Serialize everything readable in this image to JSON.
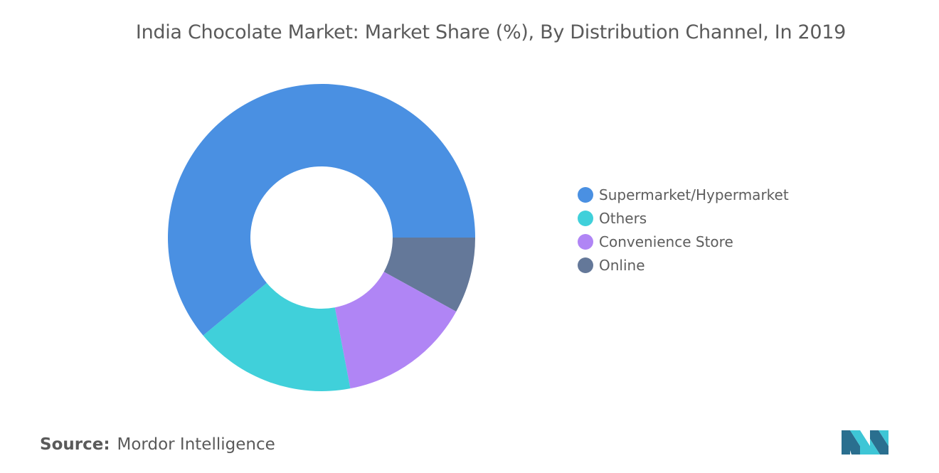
{
  "chart_data": {
    "type": "pie",
    "title": "India Chocolate Market: Market Share (%), By Distribution Channel, In 2019",
    "donut": true,
    "categories": [
      "Supermarket/Hypermarket",
      "Others",
      "Convenience Store",
      "Online"
    ],
    "values": [
      61,
      17,
      14,
      8
    ],
    "colors": [
      "#4a90e2",
      "#40d0da",
      "#b085f5",
      "#647899"
    ],
    "legend_position": "right"
  },
  "source": {
    "label": "Source:",
    "value": "Mordor Intelligence"
  },
  "logo": {
    "icon": "mordor-intelligence-logo-icon",
    "colors": [
      "#2a6f8f",
      "#3ec6d6"
    ]
  }
}
